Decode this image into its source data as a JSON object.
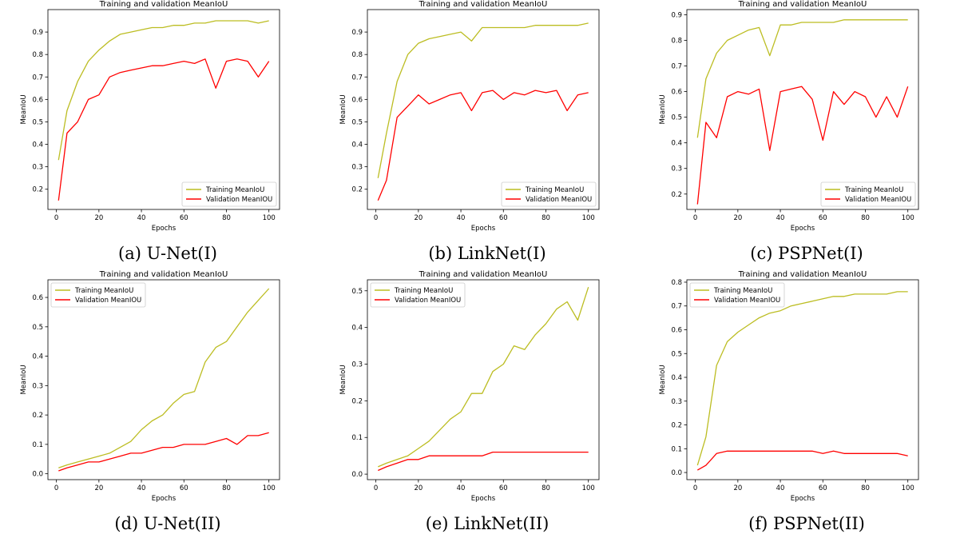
{
  "figure": {
    "captions": [
      "(a) U-Net(I)",
      "(b) LinkNet(I)",
      "(c) PSPNet(I)",
      "(d) U-Net(II)",
      "(e) LinkNet(II)",
      "(f) PSPNet(II)"
    ]
  },
  "chart_data": [
    {
      "type": "line",
      "title": "Training and validation MeanIoU",
      "xlabel": "Epochs",
      "ylabel": "MeanIoU",
      "xlim": [
        -4,
        105
      ],
      "ylim": [
        0.11,
        1.0
      ],
      "xticks": [
        0,
        20,
        40,
        60,
        80,
        100
      ],
      "yticks": [
        0.2,
        0.3,
        0.4,
        0.5,
        0.6,
        0.7,
        0.8,
        0.9
      ],
      "legend_position": "lower right",
      "grid": false,
      "x": [
        1,
        5,
        10,
        15,
        20,
        25,
        30,
        35,
        40,
        45,
        50,
        55,
        60,
        65,
        70,
        75,
        80,
        85,
        90,
        95,
        100
      ],
      "series": [
        {
          "name": "Training MeanIoU",
          "color": "#bcbd22",
          "values": [
            0.33,
            0.55,
            0.68,
            0.77,
            0.82,
            0.86,
            0.89,
            0.9,
            0.91,
            0.92,
            0.92,
            0.93,
            0.93,
            0.94,
            0.94,
            0.95,
            0.95,
            0.95,
            0.95,
            0.94,
            0.95
          ]
        },
        {
          "name": "Validation MeanIOU",
          "color": "#ff0000",
          "values": [
            0.15,
            0.45,
            0.5,
            0.6,
            0.62,
            0.7,
            0.72,
            0.73,
            0.74,
            0.75,
            0.75,
            0.76,
            0.77,
            0.76,
            0.78,
            0.65,
            0.77,
            0.78,
            0.77,
            0.7,
            0.77
          ]
        }
      ]
    },
    {
      "type": "line",
      "title": "Training and validation MeanIoU",
      "xlabel": "Epochs",
      "ylabel": "MeanIoU",
      "xlim": [
        -4,
        105
      ],
      "ylim": [
        0.11,
        1.0
      ],
      "xticks": [
        0,
        20,
        40,
        60,
        80,
        100
      ],
      "yticks": [
        0.2,
        0.3,
        0.4,
        0.5,
        0.6,
        0.7,
        0.8,
        0.9
      ],
      "legend_position": "lower right",
      "grid": false,
      "x": [
        1,
        5,
        10,
        15,
        20,
        25,
        30,
        35,
        40,
        45,
        50,
        55,
        60,
        65,
        70,
        75,
        80,
        85,
        90,
        95,
        100
      ],
      "series": [
        {
          "name": "Training MeanIoU",
          "color": "#bcbd22",
          "values": [
            0.25,
            0.45,
            0.68,
            0.8,
            0.85,
            0.87,
            0.88,
            0.89,
            0.9,
            0.86,
            0.92,
            0.92,
            0.92,
            0.92,
            0.92,
            0.93,
            0.93,
            0.93,
            0.93,
            0.93,
            0.94
          ]
        },
        {
          "name": "Validation MeanIOU",
          "color": "#ff0000",
          "values": [
            0.15,
            0.24,
            0.52,
            0.57,
            0.62,
            0.58,
            0.6,
            0.62,
            0.63,
            0.55,
            0.63,
            0.64,
            0.6,
            0.63,
            0.62,
            0.64,
            0.63,
            0.64,
            0.55,
            0.62,
            0.63
          ]
        }
      ]
    },
    {
      "type": "line",
      "title": "Training and validation MeanIoU",
      "xlabel": "Epochs",
      "ylabel": "MeanIoU",
      "xlim": [
        -4,
        105
      ],
      "ylim": [
        0.14,
        0.92
      ],
      "xticks": [
        0,
        20,
        40,
        60,
        80,
        100
      ],
      "yticks": [
        0.2,
        0.3,
        0.4,
        0.5,
        0.6,
        0.7,
        0.8,
        0.9
      ],
      "legend_position": "lower right",
      "grid": false,
      "x": [
        1,
        5,
        10,
        15,
        20,
        25,
        30,
        35,
        40,
        45,
        50,
        55,
        60,
        65,
        70,
        75,
        80,
        85,
        90,
        95,
        100
      ],
      "series": [
        {
          "name": "Training MeanIoU",
          "color": "#bcbd22",
          "values": [
            0.42,
            0.65,
            0.75,
            0.8,
            0.82,
            0.84,
            0.85,
            0.74,
            0.86,
            0.86,
            0.87,
            0.87,
            0.87,
            0.87,
            0.88,
            0.88,
            0.88,
            0.88,
            0.88,
            0.88,
            0.88
          ]
        },
        {
          "name": "Validation MeanIOU",
          "color": "#ff0000",
          "values": [
            0.16,
            0.48,
            0.42,
            0.58,
            0.6,
            0.59,
            0.61,
            0.37,
            0.6,
            0.61,
            0.62,
            0.57,
            0.41,
            0.6,
            0.55,
            0.6,
            0.58,
            0.5,
            0.58,
            0.5,
            0.62
          ]
        }
      ]
    },
    {
      "type": "line",
      "title": "Training and validation MeanIoU",
      "xlabel": "Epochs",
      "ylabel": "MeanIoU",
      "xlim": [
        -4,
        105
      ],
      "ylim": [
        -0.02,
        0.66
      ],
      "xticks": [
        0,
        20,
        40,
        60,
        80,
        100
      ],
      "yticks": [
        0.0,
        0.1,
        0.2,
        0.3,
        0.4,
        0.5,
        0.6
      ],
      "legend_position": "upper left",
      "grid": false,
      "x": [
        1,
        5,
        10,
        15,
        20,
        25,
        30,
        35,
        40,
        45,
        50,
        55,
        60,
        65,
        70,
        75,
        80,
        85,
        90,
        95,
        100
      ],
      "series": [
        {
          "name": "Training MeanIoU",
          "color": "#bcbd22",
          "values": [
            0.02,
            0.03,
            0.04,
            0.05,
            0.06,
            0.07,
            0.09,
            0.11,
            0.15,
            0.18,
            0.2,
            0.24,
            0.27,
            0.28,
            0.38,
            0.43,
            0.45,
            0.5,
            0.55,
            0.59,
            0.63
          ]
        },
        {
          "name": "Validation MeanIOU",
          "color": "#ff0000",
          "values": [
            0.01,
            0.02,
            0.03,
            0.04,
            0.04,
            0.05,
            0.06,
            0.07,
            0.07,
            0.08,
            0.09,
            0.09,
            0.1,
            0.1,
            0.1,
            0.11,
            0.12,
            0.1,
            0.13,
            0.13,
            0.14
          ]
        }
      ]
    },
    {
      "type": "line",
      "title": "Training and validation MeanIoU",
      "xlabel": "Epochs",
      "ylabel": "MeanIoU",
      "xlim": [
        -4,
        105
      ],
      "ylim": [
        -0.015,
        0.53
      ],
      "xticks": [
        0,
        20,
        40,
        60,
        80,
        100
      ],
      "yticks": [
        0.0,
        0.1,
        0.2,
        0.3,
        0.4,
        0.5
      ],
      "legend_position": "upper left",
      "grid": false,
      "x": [
        1,
        5,
        10,
        15,
        20,
        25,
        30,
        35,
        40,
        45,
        50,
        55,
        60,
        65,
        70,
        75,
        80,
        85,
        90,
        95,
        100
      ],
      "series": [
        {
          "name": "Training MeanIoU",
          "color": "#bcbd22",
          "values": [
            0.02,
            0.03,
            0.04,
            0.05,
            0.07,
            0.09,
            0.12,
            0.15,
            0.17,
            0.22,
            0.22,
            0.28,
            0.3,
            0.35,
            0.34,
            0.38,
            0.41,
            0.45,
            0.47,
            0.42,
            0.51
          ]
        },
        {
          "name": "Validation MeanIOU",
          "color": "#ff0000",
          "values": [
            0.01,
            0.02,
            0.03,
            0.04,
            0.04,
            0.05,
            0.05,
            0.05,
            0.05,
            0.05,
            0.05,
            0.06,
            0.06,
            0.06,
            0.06,
            0.06,
            0.06,
            0.06,
            0.06,
            0.06,
            0.06
          ]
        }
      ]
    },
    {
      "type": "line",
      "title": "Training and validation MeanIoU",
      "xlabel": "Epochs",
      "ylabel": "MeanIoU",
      "xlim": [
        -4,
        105
      ],
      "ylim": [
        -0.03,
        0.81
      ],
      "xticks": [
        0,
        20,
        40,
        60,
        80,
        100
      ],
      "yticks": [
        0.0,
        0.1,
        0.2,
        0.3,
        0.4,
        0.5,
        0.6,
        0.7,
        0.8
      ],
      "legend_position": "upper left",
      "grid": false,
      "x": [
        1,
        5,
        10,
        15,
        20,
        25,
        30,
        35,
        40,
        45,
        50,
        55,
        60,
        65,
        70,
        75,
        80,
        85,
        90,
        95,
        100
      ],
      "series": [
        {
          "name": "Training MeanIoU",
          "color": "#bcbd22",
          "values": [
            0.03,
            0.15,
            0.45,
            0.55,
            0.59,
            0.62,
            0.65,
            0.67,
            0.68,
            0.7,
            0.71,
            0.72,
            0.73,
            0.74,
            0.74,
            0.75,
            0.75,
            0.75,
            0.75,
            0.76,
            0.76
          ]
        },
        {
          "name": "Validation MeanIOU",
          "color": "#ff0000",
          "values": [
            0.01,
            0.03,
            0.08,
            0.09,
            0.09,
            0.09,
            0.09,
            0.09,
            0.09,
            0.09,
            0.09,
            0.09,
            0.08,
            0.09,
            0.08,
            0.08,
            0.08,
            0.08,
            0.08,
            0.08,
            0.07
          ]
        }
      ]
    }
  ]
}
